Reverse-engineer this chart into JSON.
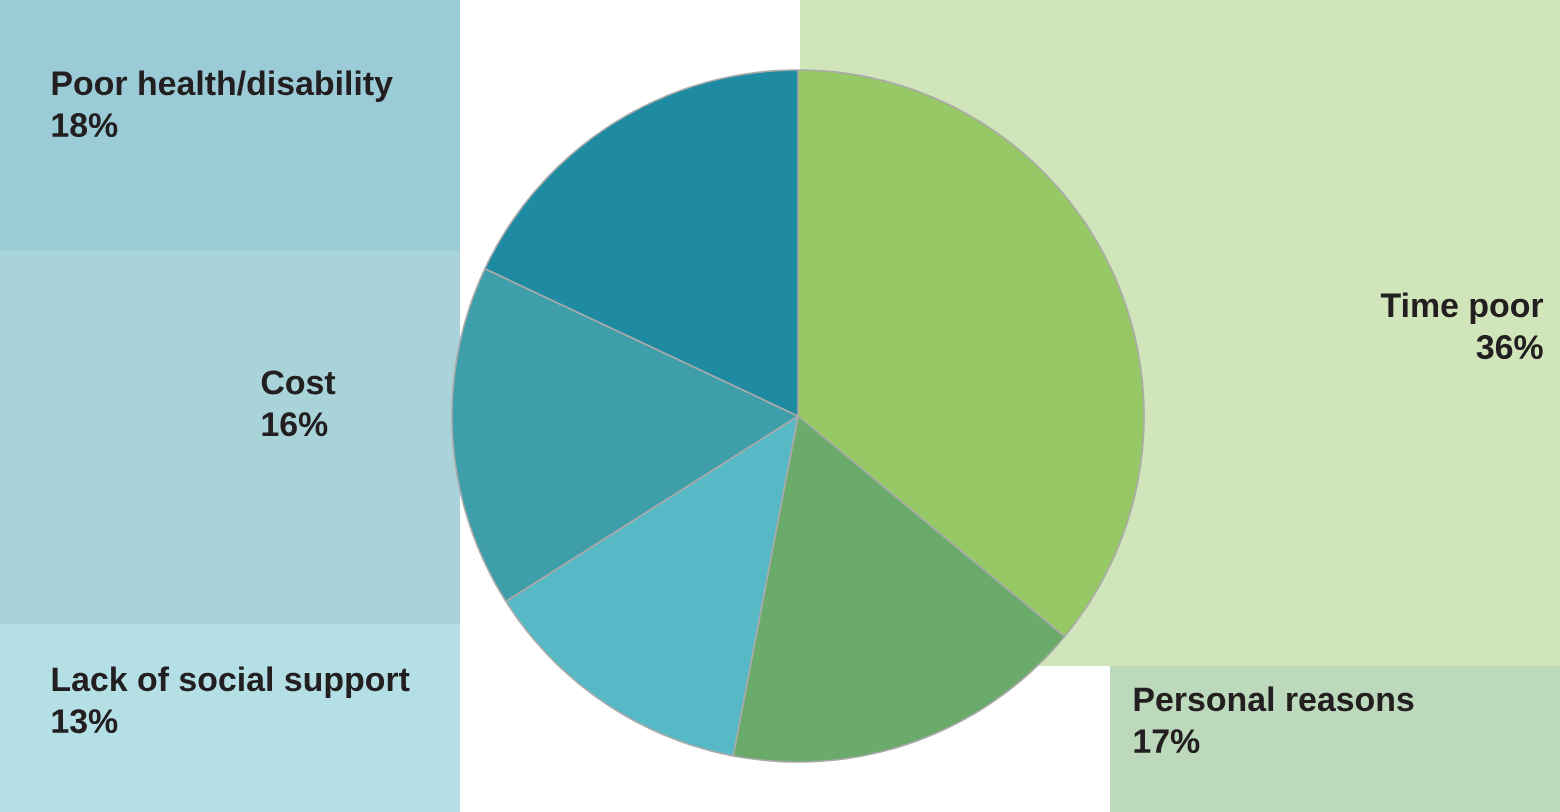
{
  "chart_data": {
    "type": "pie",
    "categories": [
      "Time poor",
      "Personal reasons",
      "Lack of social support",
      "Cost",
      "Poor health/disability"
    ],
    "values": [
      36,
      17,
      13,
      16,
      18
    ],
    "value_labels": [
      "36%",
      "17%",
      "13%",
      "16%",
      "18%"
    ],
    "colors": [
      "#96c865",
      "#6aaa6a",
      "#57b8c6",
      "#3e9ea9",
      "#1f8ba3"
    ]
  }
}
